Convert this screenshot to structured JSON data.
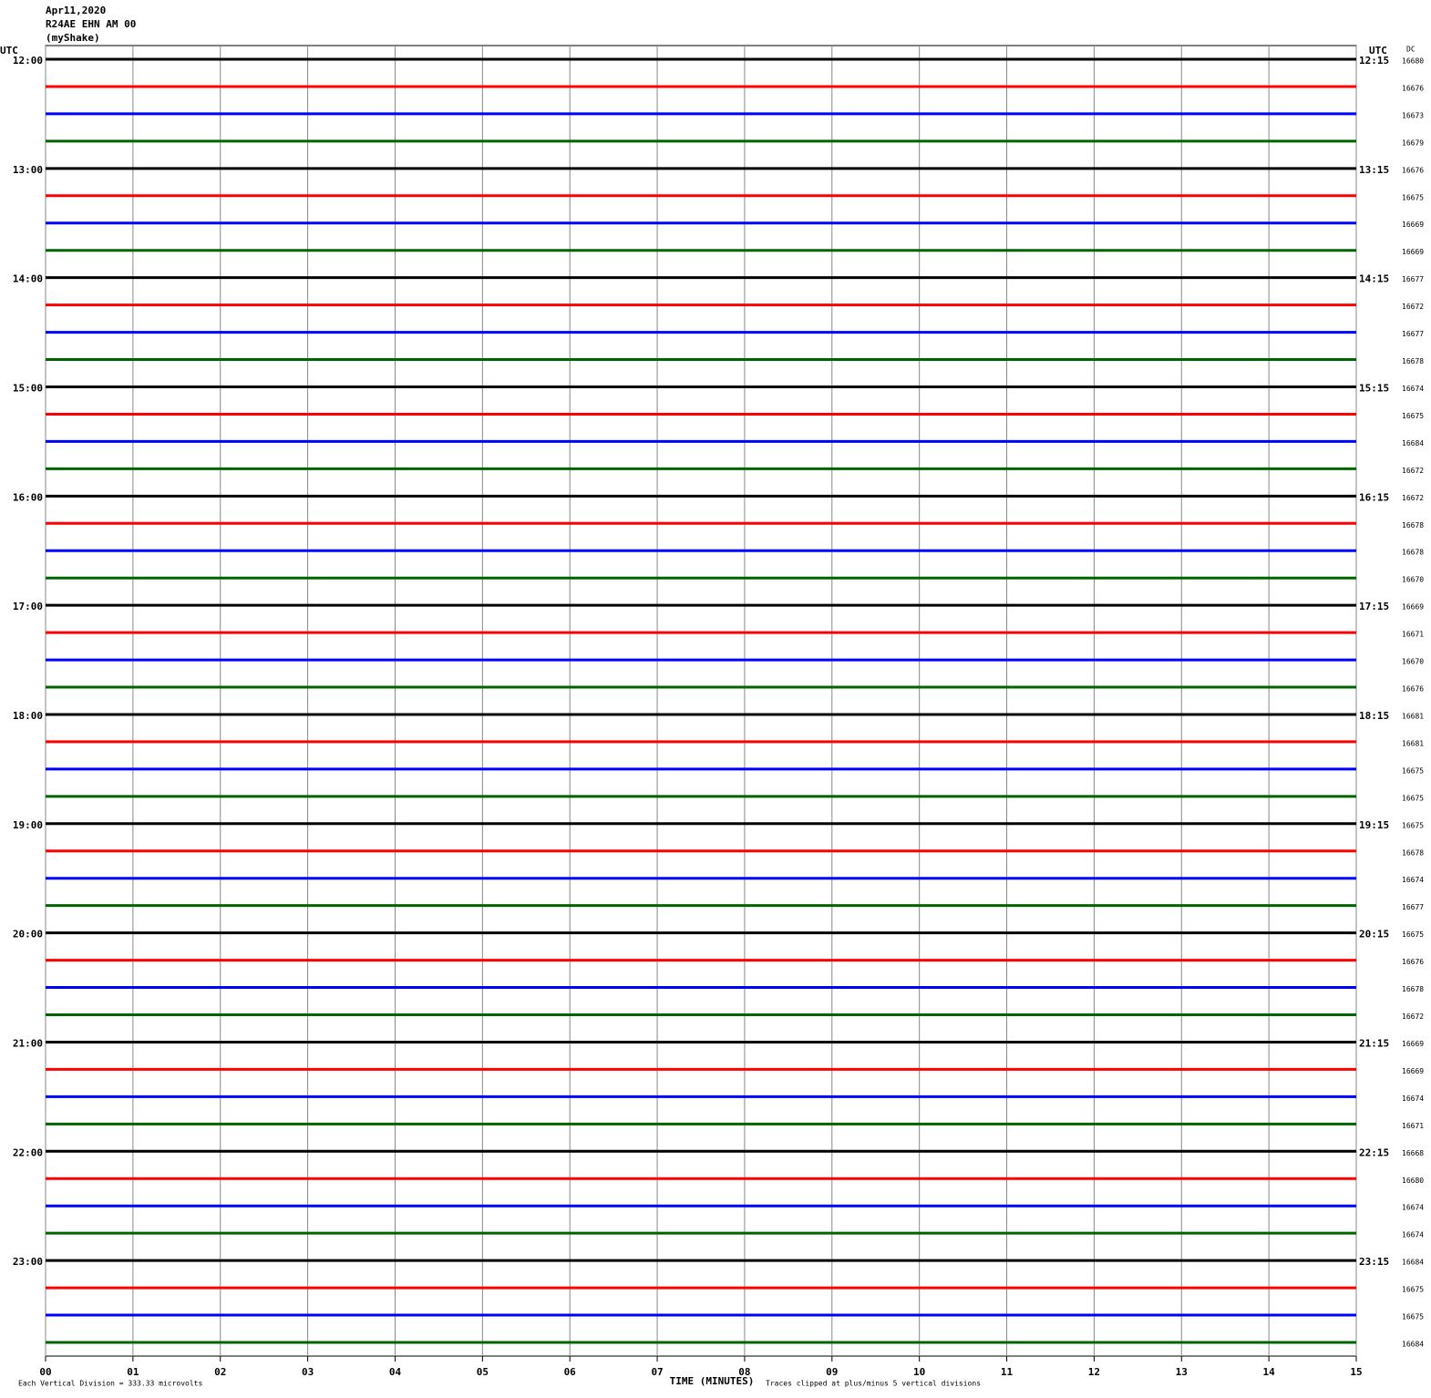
{
  "header": {
    "lines": [
      "Apr11,2020",
      "R24AE EHN AM 00",
      "(myShake)"
    ]
  },
  "chart_data": {
    "type": "helicorder",
    "left_axis_title": "UTC",
    "right_axis_title": "UTC",
    "dc_title": "DC",
    "xlabel": "TIME (MINUTES)",
    "xlim": [
      0,
      15
    ],
    "xticks": [
      {
        "value": 0,
        "label": "00"
      },
      {
        "value": 1,
        "label": "01"
      },
      {
        "value": 2,
        "label": "02"
      },
      {
        "value": 3,
        "label": "03"
      },
      {
        "value": 4,
        "label": "04"
      },
      {
        "value": 5,
        "label": "05"
      },
      {
        "value": 6,
        "label": "06"
      },
      {
        "value": 7,
        "label": "07"
      },
      {
        "value": 8,
        "label": "08"
      },
      {
        "value": 9,
        "label": "09"
      },
      {
        "value": 10,
        "label": "10"
      },
      {
        "value": 11,
        "label": "11"
      },
      {
        "value": 12,
        "label": "12"
      },
      {
        "value": 13,
        "label": "13"
      },
      {
        "value": 14,
        "label": "14"
      },
      {
        "value": 15,
        "label": "15"
      }
    ],
    "grid": true,
    "trace_colors": [
      "#000000",
      "#ff0000",
      "#0000ff",
      "#006400"
    ],
    "left_labels": [
      "12:00",
      null,
      null,
      null,
      "13:00",
      null,
      null,
      null,
      "14:00",
      null,
      null,
      null,
      "15:00",
      null,
      null,
      null,
      "16:00",
      null,
      null,
      null,
      "17:00",
      null,
      null,
      null,
      "18:00",
      null,
      null,
      null,
      "19:00",
      null,
      null,
      null,
      "20:00",
      null,
      null,
      null,
      "21:00",
      null,
      null,
      null,
      "22:00",
      null,
      null,
      null,
      "23:00",
      null,
      null,
      null
    ],
    "right_labels": [
      "12:15",
      null,
      null,
      null,
      "13:15",
      null,
      null,
      null,
      "14:15",
      null,
      null,
      null,
      "15:15",
      null,
      null,
      null,
      "16:15",
      null,
      null,
      null,
      "17:15",
      null,
      null,
      null,
      "18:15",
      null,
      null,
      null,
      "19:15",
      null,
      null,
      null,
      "20:15",
      null,
      null,
      null,
      "21:15",
      null,
      null,
      null,
      "22:15",
      null,
      null,
      null,
      "23:15",
      null,
      null,
      null
    ],
    "dc": [
      16680,
      16676,
      16673,
      16679,
      16676,
      16675,
      16669,
      16669,
      16677,
      16672,
      16677,
      16678,
      16674,
      16675,
      16684,
      16672,
      16672,
      16678,
      16678,
      16670,
      16669,
      16671,
      16670,
      16676,
      16681,
      16681,
      16675,
      16675,
      16675,
      16678,
      16674,
      16677,
      16675,
      16676,
      16678,
      16672,
      16669,
      16669,
      16674,
      16671,
      16668,
      16680,
      16674,
      16674,
      16684,
      16675,
      16675,
      16684
    ],
    "footer_left": "Each Vertical Division =  333.33 microvolts",
    "footer_right": "Traces clipped at plus/minus 5 vertical divisions"
  }
}
